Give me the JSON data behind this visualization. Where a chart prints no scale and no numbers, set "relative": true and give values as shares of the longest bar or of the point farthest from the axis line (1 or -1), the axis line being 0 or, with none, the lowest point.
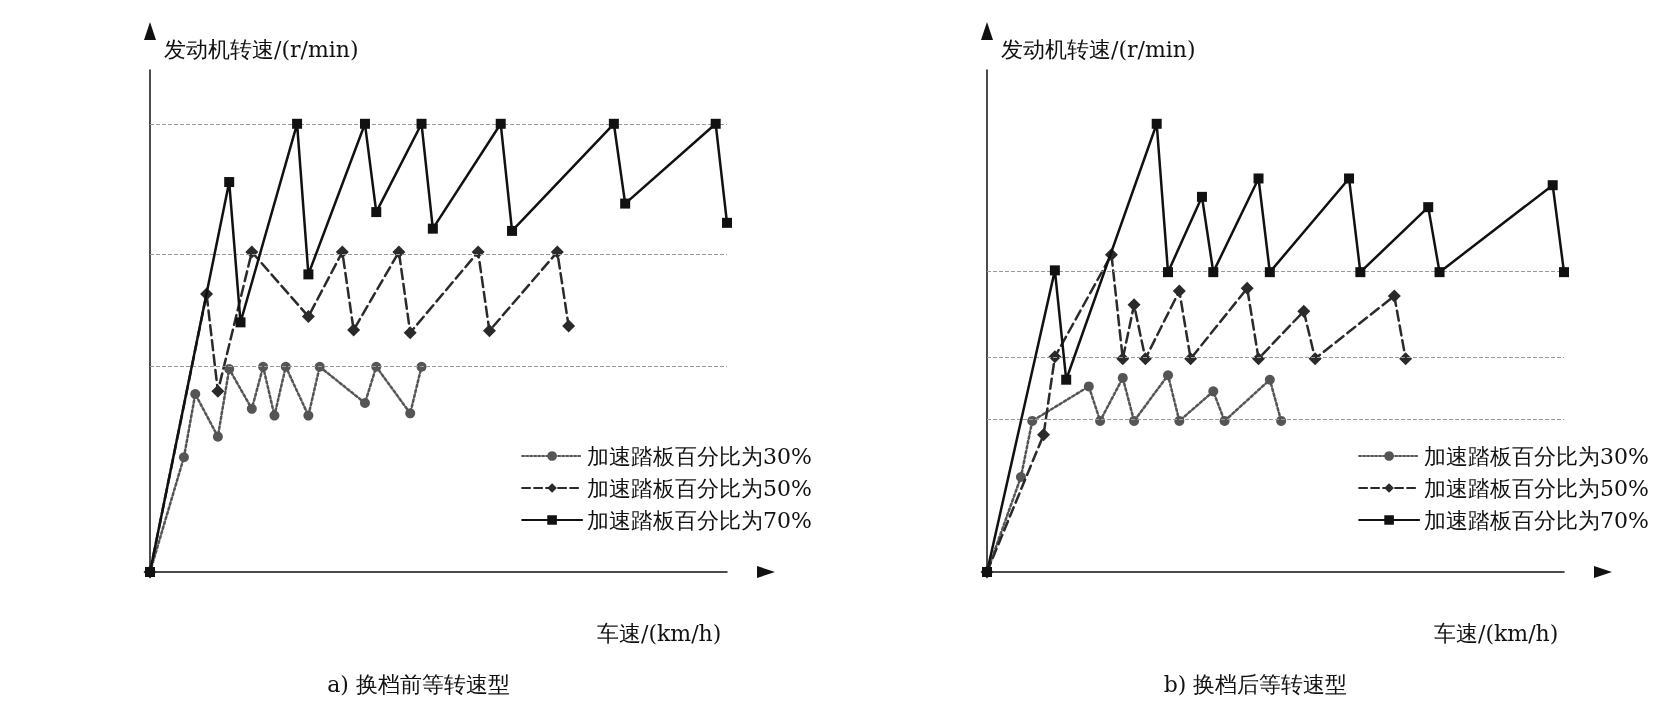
{
  "chart_data": [
    {
      "type": "line",
      "title": "a) 换档前等转速型",
      "xlabel": "车速/(km/h)",
      "ylabel": "发动机转速/(r/min)",
      "relative": true,
      "legend": "right",
      "grid": false,
      "categories": [
        null,
        null,
        null,
        null,
        null,
        null,
        null,
        null,
        null,
        null,
        null,
        null,
        null,
        null,
        null,
        null,
        null,
        null,
        null,
        null,
        null,
        null,
        null,
        null,
        null,
        null,
        null,
        null,
        null,
        null,
        null,
        null,
        null,
        null,
        null,
        null,
        null,
        null,
        null,
        null,
        null,
        null,
        null,
        null,
        null,
        null,
        null,
        null,
        null,
        null,
        null,
        null
      ],
      "series": [
        {
          "name": "加速踏板百分比为30%",
          "color": "#555555",
          "marker": "circle",
          "line_style": "dotted",
          "values": [
            0,
            null,
            null,
            0.256,
            0.397,
            null,
            0.302,
            0.453,
            null,
            0.364,
            0.458,
            0.349,
            0.458,
            null,
            0.349,
            0.458,
            null,
            null,
            null,
            0.377,
            0.458,
            null,
            null,
            0.354,
            0.458,
            null,
            null,
            null,
            null,
            null,
            null,
            null,
            null,
            null,
            null,
            null,
            null,
            null,
            null,
            null,
            null,
            null,
            null,
            null,
            null,
            null,
            null,
            null,
            null,
            null,
            null,
            null
          ]
        },
        {
          "name": "加速踏板百分比为50%",
          "color": "#2a2a2a",
          "marker": "diamond",
          "line_style": "dashed",
          "values": [
            0,
            null,
            null,
            null,
            null,
            0.62,
            0.403,
            null,
            null,
            0.714,
            null,
            null,
            null,
            null,
            0.57,
            null,
            null,
            0.714,
            0.54,
            null,
            null,
            null,
            0.714,
            0.534,
            null,
            null,
            null,
            null,
            null,
            0.714,
            0.538,
            null,
            null,
            null,
            null,
            null,
            0.714,
            0.549,
            null,
            null,
            null,
            null,
            null,
            null,
            null,
            null,
            null,
            null,
            null,
            null,
            null,
            null
          ]
        },
        {
          "name": "加速踏板百分比为70%",
          "color": "#111111",
          "marker": "square",
          "line_style": "solid",
          "values": [
            0,
            null,
            null,
            null,
            null,
            null,
            null,
            0.87,
            0.557,
            null,
            null,
            null,
            null,
            1,
            0.664,
            null,
            null,
            null,
            null,
            1,
            0.803,
            null,
            null,
            null,
            1,
            0.766,
            null,
            null,
            null,
            null,
            null,
            1,
            0.761,
            null,
            null,
            null,
            null,
            null,
            null,
            null,
            null,
            1,
            0.822,
            null,
            null,
            null,
            null,
            null,
            null,
            null,
            1,
            0.779
          ]
        }
      ],
      "ref_lines": [
        {
          "axis": "y",
          "value": 1,
          "color": "#999999",
          "line_style": "dashed"
        },
        {
          "axis": "y",
          "value": 0.71,
          "color": "#999999",
          "line_style": "dashed"
        },
        {
          "axis": "y",
          "value": 0.458,
          "color": "#999999",
          "line_style": "dashed"
        }
      ]
    },
    {
      "type": "line",
      "title": "b) 换档后等转速型",
      "xlabel": "车速/(km/h)",
      "ylabel": "发动机转速/(r/min)",
      "relative": true,
      "legend": "right",
      "grid": false,
      "categories": [
        null,
        null,
        null,
        null,
        null,
        null,
        null,
        null,
        null,
        null,
        null,
        null,
        null,
        null,
        null,
        null,
        null,
        null,
        null,
        null,
        null,
        null,
        null,
        null,
        null,
        null,
        null,
        null,
        null,
        null,
        null,
        null,
        null,
        null,
        null,
        null,
        null,
        null,
        null,
        null,
        null,
        null,
        null,
        null,
        null,
        null,
        null,
        null,
        null,
        null,
        null,
        null
      ],
      "series": [
        {
          "name": "加速踏板百分比为30%",
          "color": "#555555",
          "marker": "circle",
          "line_style": "dotted",
          "values": [
            0,
            null,
            null,
            0.212,
            0.337,
            null,
            null,
            null,
            null,
            0.414,
            0.337,
            null,
            0.433,
            0.337,
            null,
            null,
            0.439,
            0.337,
            null,
            null,
            0.403,
            0.337,
            null,
            null,
            null,
            0.429,
            0.337,
            null,
            null,
            null,
            null,
            null,
            null,
            null,
            null,
            null,
            null,
            null,
            null,
            null,
            null,
            null,
            null,
            null,
            null,
            null,
            null,
            null,
            null,
            null,
            null,
            null
          ]
        },
        {
          "name": "加速踏板百分比为50%",
          "color": "#2a2a2a",
          "marker": "diamond",
          "line_style": "dashed",
          "values": [
            0,
            null,
            null,
            null,
            null,
            0.306,
            0.48,
            null,
            null,
            null,
            null,
            0.708,
            0.476,
            0.596,
            0.476,
            null,
            null,
            0.627,
            0.476,
            null,
            null,
            null,
            null,
            0.633,
            0.476,
            null,
            null,
            null,
            0.582,
            0.476,
            null,
            null,
            null,
            null,
            null,
            null,
            0.616,
            0.476,
            null,
            null,
            null,
            null,
            null,
            null,
            null,
            null,
            null,
            null,
            null,
            null,
            null,
            null
          ]
        },
        {
          "name": "加速踏板百分比为70%",
          "color": "#111111",
          "marker": "square",
          "line_style": "solid",
          "values": [
            0,
            null,
            null,
            null,
            null,
            null,
            0.673,
            0.429,
            null,
            null,
            null,
            null,
            null,
            null,
            null,
            1,
            0.669,
            null,
            null,
            0.837,
            0.669,
            null,
            null,
            null,
            0.878,
            0.669,
            null,
            null,
            null,
            null,
            null,
            null,
            0.878,
            0.669,
            null,
            null,
            null,
            null,
            null,
            0.814,
            0.669,
            null,
            null,
            null,
            null,
            null,
            null,
            null,
            null,
            null,
            0.863,
            0.669
          ]
        }
      ],
      "ref_lines": [
        {
          "axis": "y",
          "value": 0.669,
          "color": "#999999",
          "line_style": "dashed"
        },
        {
          "axis": "y",
          "value": 0.476,
          "color": "#999999",
          "line_style": "dashed"
        },
        {
          "axis": "y",
          "value": 0.337,
          "color": "#999999",
          "line_style": "dashed"
        }
      ]
    }
  ]
}
